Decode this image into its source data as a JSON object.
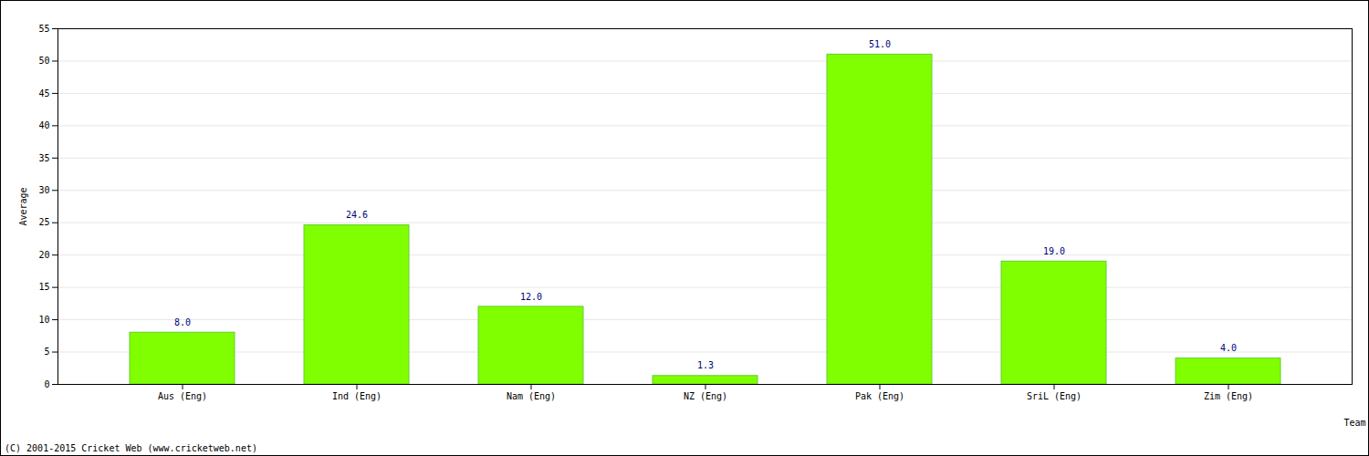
{
  "chart_data": {
    "type": "bar",
    "x_label": "Team",
    "y_label": "Average",
    "caption": "(C) 2001-2015 Cricket Web (www.cricketweb.net)",
    "categories": [
      "Aus (Eng)",
      "Ind (Eng)",
      "Nam (Eng)",
      "NZ (Eng)",
      "Pak (Eng)",
      "SriL (Eng)",
      "Zim (Eng)"
    ],
    "values": [
      8.0,
      24.6,
      12.0,
      1.3,
      51.0,
      19.0,
      4.0
    ],
    "value_labels": [
      "8.0",
      "24.6",
      "12.0",
      "1.3",
      "51.0",
      "19.0",
      "4.0"
    ],
    "color": "#80ff00",
    "ylim": [
      0,
      55
    ],
    "yticks": [
      0,
      5,
      10,
      15,
      20,
      25,
      30,
      35,
      40,
      45,
      50,
      55
    ],
    "grid": true,
    "data_labels": true
  }
}
